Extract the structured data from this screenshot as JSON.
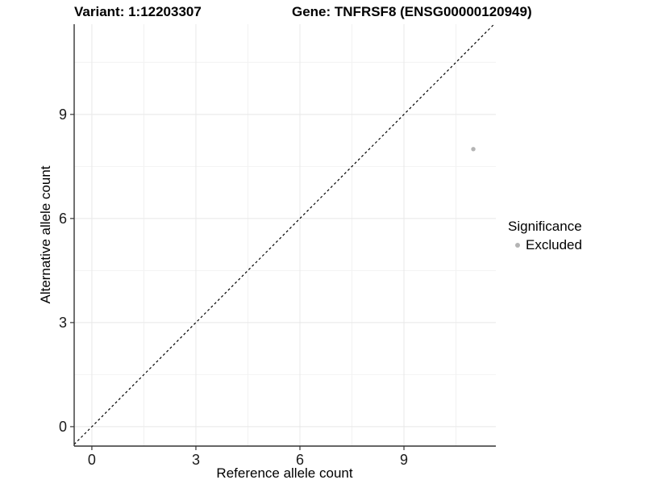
{
  "chart_data": {
    "type": "scatter",
    "titles": {
      "left": "Variant: 1:12203307",
      "right": "Gene: TNFRSF8 (ENSG00000120949)"
    },
    "xlabel": "Reference allele count",
    "ylabel": "Alternative allele count",
    "xlim": [
      -0.51,
      11.65
    ],
    "ylim": [
      -0.56,
      11.6
    ],
    "x_ticks": [
      0,
      3,
      6,
      9
    ],
    "y_ticks": [
      0,
      3,
      6,
      9
    ],
    "x_minor_ticks": [
      1.5,
      4.5,
      7.5,
      10.5
    ],
    "y_minor_ticks": [
      1.5,
      4.5,
      7.5,
      10.5
    ],
    "grid": "major-and-minor",
    "identity_line": {
      "equation": "y = x",
      "style": "dashed",
      "color": "#000000"
    },
    "series": [
      {
        "name": "Excluded",
        "marker": "circle",
        "color": "#b4b4b4",
        "points": [
          {
            "x": 11,
            "y": 8
          }
        ]
      }
    ],
    "legend": {
      "title": "Significance",
      "position": "right",
      "entries": [
        {
          "label": "Excluded",
          "marker": "circle",
          "color": "#b4b4b4"
        }
      ]
    }
  },
  "colors": {
    "background": "#ffffff",
    "grid_major": "#e8e8e8",
    "grid_minor": "#f2f2f2",
    "axis_line": "#333333",
    "tick_text": "#1a1a1a",
    "point": "#b4b4b4"
  }
}
